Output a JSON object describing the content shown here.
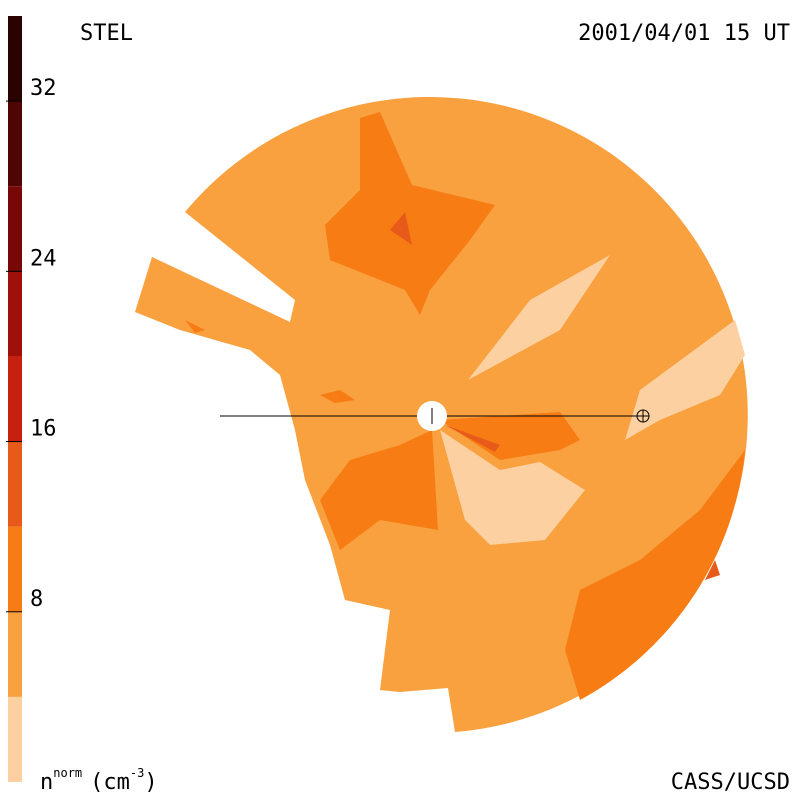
{
  "chart_data": {
    "type": "contour",
    "title": "STEL",
    "subtitle": "2001/04/01 15 UT",
    "credit": "CASS/UCSD",
    "colorbar_label": {
      "symbol": "n",
      "superscript": "norm",
      "unit": "(cm",
      "unit_power": "-3",
      "close": ")"
    },
    "levels": [
      0,
      4,
      8,
      12,
      16,
      20,
      24,
      28,
      32,
      36
    ],
    "colors": [
      "#fcd0a0",
      "#f9a03f",
      "#f77c14",
      "#e85a1a",
      "#c8200f",
      "#a01008",
      "#780808",
      "#500505",
      "#2a0200"
    ],
    "ylim": [
      0,
      36
    ],
    "yticks": [
      8,
      16,
      24,
      32
    ]
  }
}
